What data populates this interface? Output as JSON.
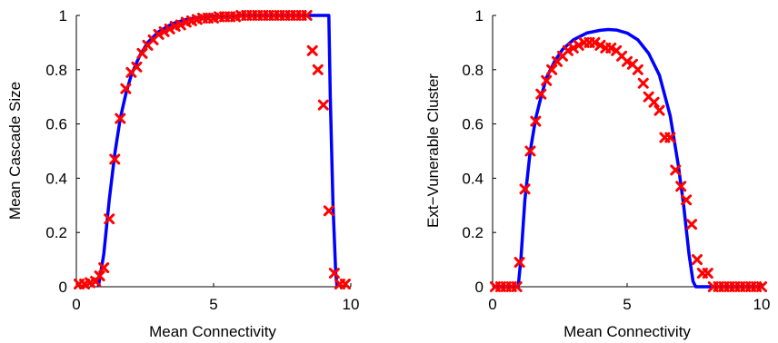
{
  "chart_data": [
    {
      "type": "line",
      "xlabel": "Mean Connectivity",
      "ylabel": "Mean Cascade Size",
      "xlim": [
        0,
        10
      ],
      "ylim": [
        0,
        1
      ],
      "xticks": [
        0,
        5,
        10
      ],
      "yticks": [
        0,
        0.2,
        0.4,
        0.6,
        0.8,
        1
      ],
      "xtick_labels": [
        "0",
        "5",
        "10"
      ],
      "ytick_labels": [
        "0",
        "0.2",
        "0.4",
        "0.6",
        "0.8",
        "1"
      ],
      "grid": false,
      "legend": "none",
      "series": [
        {
          "kind": "line",
          "color": "#0000ff",
          "x": [
            0.8,
            1.0,
            1.2,
            1.4,
            1.6,
            1.8,
            2.0,
            2.3,
            2.6,
            3.0,
            3.5,
            4.0,
            4.5,
            5.0,
            6.0,
            7.0,
            8.0,
            9.0,
            9.2,
            9.25,
            9.35,
            9.45,
            9.5
          ],
          "y": [
            0.0,
            0.12,
            0.32,
            0.49,
            0.62,
            0.71,
            0.78,
            0.85,
            0.9,
            0.94,
            0.97,
            0.985,
            0.993,
            0.997,
            1.0,
            1.0,
            1.0,
            1.0,
            1.0,
            0.7,
            0.3,
            0.05,
            0.0
          ]
        },
        {
          "kind": "scatter",
          "color": "#ff0000",
          "marker": "x",
          "x": [
            0.1,
            0.3,
            0.5,
            0.7,
            0.85,
            1.0,
            1.2,
            1.4,
            1.6,
            1.8,
            2.0,
            2.2,
            2.4,
            2.6,
            2.8,
            3.0,
            3.2,
            3.4,
            3.6,
            3.8,
            4.0,
            4.2,
            4.4,
            4.6,
            4.8,
            5.0,
            5.2,
            5.4,
            5.6,
            5.8,
            6.0,
            6.2,
            6.4,
            6.6,
            6.8,
            7.0,
            7.2,
            7.4,
            7.6,
            7.8,
            8.0,
            8.2,
            8.4,
            8.6,
            8.8,
            9.0,
            9.2,
            9.4,
            9.6,
            9.8
          ],
          "y": [
            0.01,
            0.01,
            0.015,
            0.02,
            0.04,
            0.07,
            0.25,
            0.47,
            0.62,
            0.73,
            0.79,
            0.81,
            0.86,
            0.89,
            0.91,
            0.93,
            0.94,
            0.95,
            0.96,
            0.965,
            0.975,
            0.98,
            0.985,
            0.99,
            0.99,
            0.99,
            0.995,
            0.995,
            0.995,
            0.995,
            1.0,
            1.0,
            1.0,
            1.0,
            1.0,
            1.0,
            1.0,
            1.0,
            1.0,
            1.0,
            1.0,
            1.0,
            1.0,
            0.87,
            0.8,
            0.67,
            0.28,
            0.05,
            0.01,
            0.01
          ]
        }
      ]
    },
    {
      "type": "line",
      "xlabel": "Mean Connectivity",
      "ylabel": "Ext−Vunerable Cluster",
      "xlim": [
        0,
        10
      ],
      "ylim": [
        0,
        1
      ],
      "xticks": [
        0,
        5,
        10
      ],
      "yticks": [
        0,
        0.2,
        0.4,
        0.6,
        0.8,
        1
      ],
      "xtick_labels": [
        "0",
        "5",
        "10"
      ],
      "ytick_labels": [
        "0",
        "0.2",
        "0.4",
        "0.6",
        "0.8",
        "1"
      ],
      "grid": false,
      "legend": "none",
      "series": [
        {
          "kind": "line",
          "color": "#0000ff",
          "x": [
            0.0,
            0.95,
            1.05,
            1.2,
            1.4,
            1.6,
            1.8,
            2.0,
            2.3,
            2.6,
            3.0,
            3.5,
            4.0,
            4.3,
            4.6,
            5.0,
            5.4,
            5.8,
            6.2,
            6.6,
            6.9,
            7.1,
            7.3,
            7.45,
            7.55,
            10.0
          ],
          "y": [
            0.0,
            0.0,
            0.1,
            0.32,
            0.5,
            0.62,
            0.7,
            0.77,
            0.83,
            0.875,
            0.91,
            0.935,
            0.945,
            0.948,
            0.946,
            0.935,
            0.91,
            0.86,
            0.78,
            0.63,
            0.45,
            0.3,
            0.12,
            0.02,
            0.0,
            0.0
          ]
        },
        {
          "kind": "scatter",
          "color": "#ff0000",
          "marker": "x",
          "x": [
            0.1,
            0.3,
            0.5,
            0.7,
            0.9,
            1.0,
            1.2,
            1.4,
            1.6,
            1.8,
            2.0,
            2.2,
            2.4,
            2.6,
            2.8,
            3.0,
            3.2,
            3.4,
            3.6,
            3.8,
            4.0,
            4.2,
            4.4,
            4.6,
            4.8,
            5.0,
            5.2,
            5.4,
            5.6,
            5.8,
            6.0,
            6.2,
            6.4,
            6.6,
            6.8,
            7.0,
            7.2,
            7.4,
            7.6,
            7.8,
            8.0,
            8.2,
            8.4,
            8.6,
            8.8,
            9.0,
            9.2,
            9.4,
            9.6,
            9.8,
            10.0
          ],
          "y": [
            0.0,
            0.0,
            0.0,
            0.0,
            0.0,
            0.09,
            0.36,
            0.5,
            0.61,
            0.71,
            0.76,
            0.8,
            0.83,
            0.85,
            0.87,
            0.88,
            0.89,
            0.9,
            0.9,
            0.9,
            0.89,
            0.88,
            0.88,
            0.87,
            0.85,
            0.83,
            0.82,
            0.8,
            0.75,
            0.7,
            0.68,
            0.65,
            0.55,
            0.55,
            0.43,
            0.37,
            0.32,
            0.23,
            0.1,
            0.05,
            0.05,
            0.0,
            0.0,
            0.0,
            0.0,
            0.0,
            0.0,
            0.0,
            0.0,
            0.0,
            0.0
          ]
        }
      ]
    }
  ]
}
